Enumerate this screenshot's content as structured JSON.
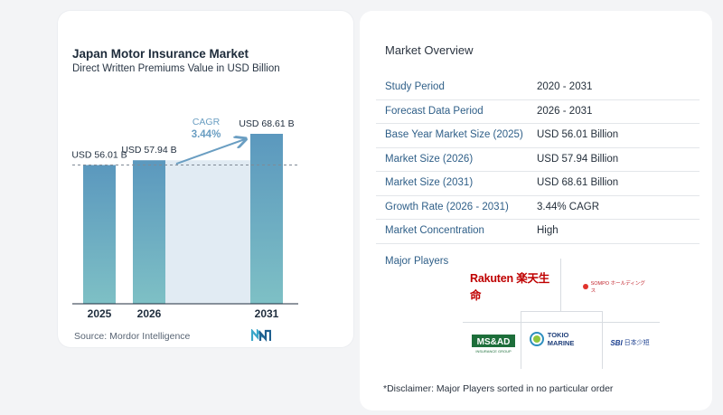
{
  "chart_data": {
    "type": "bar",
    "title": "Japan Motor Insurance Market",
    "subtitle": "Direct Written Premiums Value in USD Billion",
    "categories": [
      "2025",
      "2026",
      "2031"
    ],
    "values": [
      56.01,
      57.94,
      68.61
    ],
    "value_labels": [
      "USD 56.01 B",
      "USD 57.94 B",
      "USD 68.61 B"
    ],
    "annotation": {
      "label": "CAGR",
      "value": "3.44%"
    },
    "bar_color": "#5b98be",
    "bar_color_bottom": "#7ec0c5",
    "band_color": "#e1ebf3",
    "annotation_color": "#6a9ec2",
    "source": "Source:  Mordor Intelligence"
  },
  "overview": {
    "title": "Market Overview",
    "rows": [
      {
        "label": "Study Period",
        "value": "2020 - 2031"
      },
      {
        "label": "Forecast Data Period",
        "value": "2026 - 2031"
      },
      {
        "label": "Base Year Market Size (2025)",
        "value": "USD 56.01 Billion"
      },
      {
        "label": "Market Size (2026)",
        "value": "USD 57.94 Billion"
      },
      {
        "label": "Market Size (2031)",
        "value": "USD 68.61 Billion"
      },
      {
        "label": "Growth Rate (2026 - 2031)",
        "value": "3.44% CAGR"
      },
      {
        "label": "Market Concentration",
        "value": "High"
      }
    ]
  },
  "players": {
    "title": "Major Players",
    "logos": [
      {
        "name": "Rakuten",
        "text": "Rakuten 楽天生命"
      },
      {
        "name": "Sompo",
        "text": "SOMPO ホールディングス"
      },
      {
        "name": "MS&AD",
        "text": "MS&AD",
        "subtext": "INSURANCE GROUP"
      },
      {
        "name": "Tokio Marine",
        "text": "TOKIO MARINE"
      },
      {
        "name": "SBI",
        "text": "SBI",
        "subtext": "日本少短"
      }
    ]
  },
  "disclaimer": "*Disclaimer: Major Players sorted in no particular order"
}
